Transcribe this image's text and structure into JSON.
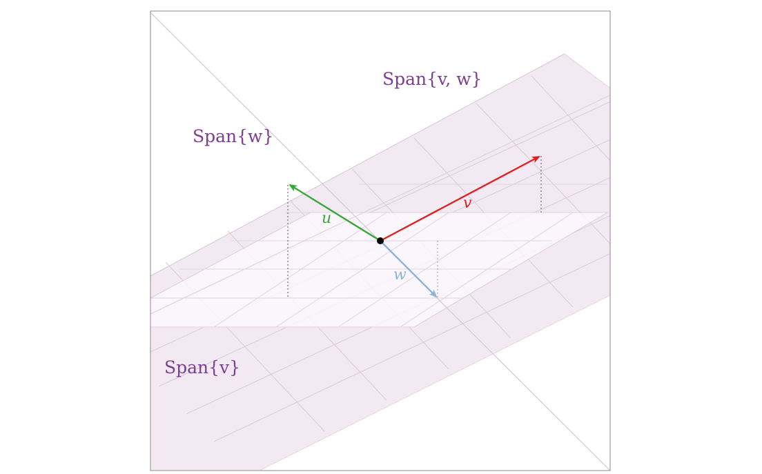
{
  "labels": {
    "span_vw": "Span{v, w}",
    "span_w": "Span{w}",
    "span_v": "Span{v}",
    "vec_u": "u",
    "vec_v": "v",
    "vec_w": "w"
  },
  "colors": {
    "u": "#3aa63a",
    "v": "#e02020",
    "w": "#8fb4d6",
    "span_label": "#7b3f8f",
    "plane_fill": "#f3e9f3",
    "grid": "#cfc6cf",
    "frame": "#888888"
  }
}
